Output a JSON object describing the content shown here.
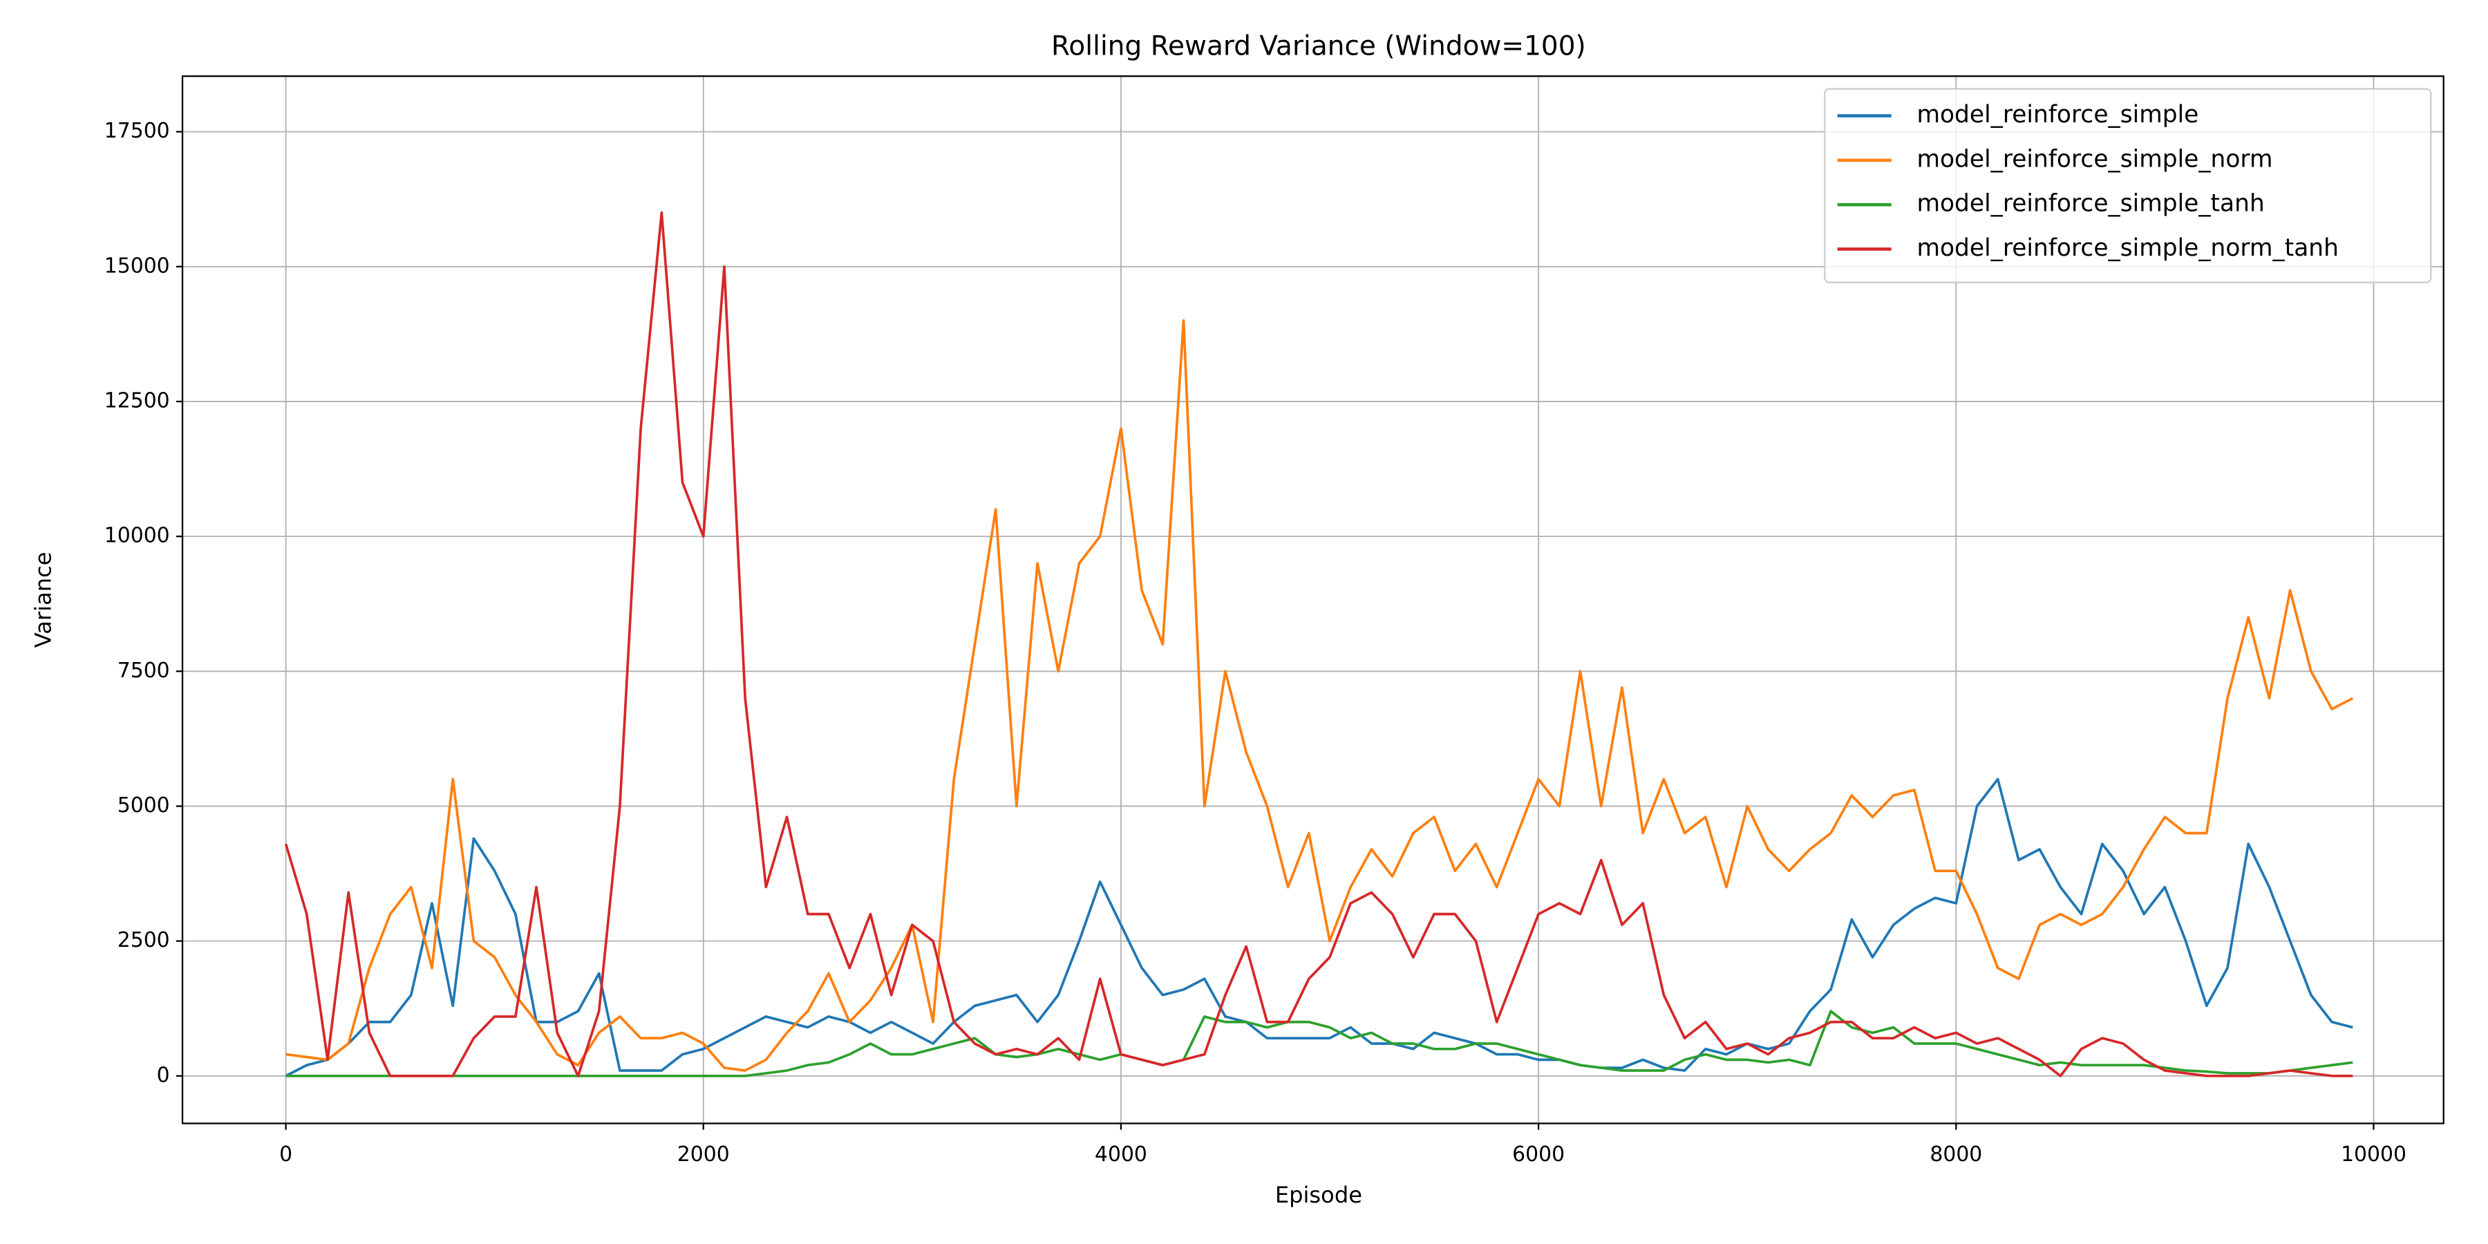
{
  "chart_data": {
    "type": "line",
    "title": "Rolling Reward Variance (Window=100)",
    "x_label": "Episode",
    "y_label": "Variance",
    "xlim": [
      -495,
      10335
    ],
    "ylim": [
      -880,
      18530
    ],
    "xticks": [
      0,
      2000,
      4000,
      6000,
      8000,
      10000
    ],
    "yticks": [
      0,
      2500,
      5000,
      7500,
      10000,
      12500,
      15000,
      17500
    ],
    "grid": true,
    "legend": "upper right",
    "x": [
      0,
      100,
      200,
      300,
      400,
      500,
      600,
      700,
      800,
      900,
      1000,
      1100,
      1200,
      1300,
      1400,
      1500,
      1600,
      1700,
      1800,
      1900,
      2000,
      2100,
      2200,
      2300,
      2400,
      2500,
      2600,
      2700,
      2800,
      2900,
      3000,
      3100,
      3200,
      3300,
      3400,
      3500,
      3600,
      3700,
      3800,
      3900,
      4000,
      4100,
      4200,
      4300,
      4400,
      4500,
      4600,
      4700,
      4800,
      4900,
      5000,
      5100,
      5200,
      5300,
      5400,
      5500,
      5600,
      5700,
      5800,
      5900,
      6000,
      6100,
      6200,
      6300,
      6400,
      6500,
      6600,
      6700,
      6800,
      6900,
      7000,
      7100,
      7200,
      7300,
      7400,
      7500,
      7600,
      7700,
      7800,
      7900,
      8000,
      8100,
      8200,
      8300,
      8400,
      8500,
      8600,
      8700,
      8800,
      8900,
      9000,
      9100,
      9200,
      9300,
      9400,
      9500,
      9600,
      9700,
      9800,
      9900
    ],
    "series": [
      {
        "name": "model_reinforce_simple",
        "color": "#1f77b4",
        "values": [
          0,
          200,
          300,
          600,
          1000,
          1000,
          1500,
          3200,
          1300,
          4400,
          3800,
          3000,
          1000,
          1000,
          1200,
          1900,
          100,
          100,
          100,
          400,
          500,
          700,
          900,
          1100,
          1000,
          900,
          1100,
          1000,
          800,
          1000,
          800,
          600,
          1000,
          1300,
          1400,
          1500,
          1000,
          1500,
          2500,
          3600,
          2800,
          2000,
          1500,
          1600,
          1800,
          1100,
          1000,
          700,
          700,
          700,
          700,
          900,
          600,
          600,
          500,
          800,
          700,
          600,
          400,
          400,
          300,
          300,
          200,
          150,
          150,
          300,
          150,
          100,
          500,
          400,
          600,
          500,
          600,
          1200,
          1600,
          2900,
          2200,
          2800,
          3100,
          3300,
          3200,
          5000,
          5500,
          4000,
          4200,
          3500,
          3000,
          4300,
          3800,
          3000,
          3500,
          2500,
          1300,
          2000,
          4300,
          3500,
          2500,
          1500,
          1000,
          900
        ]
      },
      {
        "name": "model_reinforce_simple_norm",
        "color": "#ff7f0e",
        "values": [
          400,
          350,
          300,
          600,
          2000,
          3000,
          3500,
          2000,
          5500,
          2500,
          2200,
          1500,
          1000,
          400,
          200,
          800,
          1100,
          700,
          700,
          800,
          600,
          150,
          100,
          300,
          800,
          1200,
          1900,
          1000,
          1400,
          2000,
          2800,
          1000,
          5500,
          8000,
          10500,
          5000,
          9500,
          7500,
          9500,
          10000,
          12000,
          9000,
          8000,
          14000,
          5000,
          7500,
          6000,
          5000,
          3500,
          4500,
          2500,
          3500,
          4200,
          3700,
          4500,
          4800,
          3800,
          4300,
          3500,
          4500,
          5500,
          5000,
          7500,
          5000,
          7200,
          4500,
          5500,
          4500,
          4800,
          3500,
          5000,
          4200,
          3800,
          4200,
          4500,
          5200,
          4800,
          5200,
          5300,
          3800,
          3800,
          3000,
          2000,
          1800,
          2800,
          3000,
          2800,
          3000,
          3500,
          4200,
          4800,
          4500,
          4500,
          7000,
          8500,
          7000,
          9000,
          7500,
          6800,
          7000
        ]
      },
      {
        "name": "model_reinforce_simple_tanh",
        "color": "#2ca02c",
        "values": [
          0,
          0,
          0,
          0,
          0,
          0,
          0,
          0,
          0,
          0,
          0,
          0,
          0,
          0,
          0,
          0,
          0,
          0,
          0,
          0,
          0,
          0,
          0,
          50,
          100,
          200,
          250,
          400,
          600,
          400,
          400,
          500,
          600,
          700,
          400,
          350,
          400,
          500,
          400,
          300,
          400,
          300,
          200,
          300,
          1100,
          1000,
          1000,
          900,
          1000,
          1000,
          900,
          700,
          800,
          600,
          600,
          500,
          500,
          600,
          600,
          500,
          400,
          300,
          200,
          150,
          100,
          100,
          100,
          300,
          400,
          300,
          300,
          250,
          300,
          200,
          1200,
          900,
          800,
          900,
          600,
          600,
          600,
          500,
          400,
          300,
          200,
          250,
          200,
          200,
          200,
          200,
          150,
          100,
          80,
          50,
          50,
          50,
          100,
          150,
          200,
          250
        ]
      },
      {
        "name": "model_reinforce_simple_norm_tanh",
        "color": "#d62728",
        "values": [
          4300,
          3000,
          300,
          3400,
          800,
          0,
          0,
          0,
          0,
          700,
          1100,
          1100,
          3500,
          800,
          0,
          1200,
          5000,
          12000,
          16000,
          11000,
          10000,
          15000,
          7000,
          3500,
          4800,
          3000,
          3000,
          2000,
          3000,
          1500,
          2800,
          2500,
          1000,
          600,
          400,
          500,
          400,
          700,
          300,
          1800,
          400,
          300,
          200,
          300,
          400,
          1500,
          2400,
          1000,
          1000,
          1800,
          2200,
          3200,
          3400,
          3000,
          2200,
          3000,
          3000,
          2500,
          1000,
          2000,
          3000,
          3200,
          3000,
          4000,
          2800,
          3200,
          1500,
          700,
          1000,
          500,
          600,
          400,
          700,
          800,
          1000,
          1000,
          700,
          700,
          900,
          700,
          800,
          600,
          700,
          500,
          300,
          0,
          500,
          700,
          600,
          300,
          100,
          50,
          0,
          0,
          0,
          50,
          100,
          50,
          0,
          0
        ]
      }
    ]
  }
}
